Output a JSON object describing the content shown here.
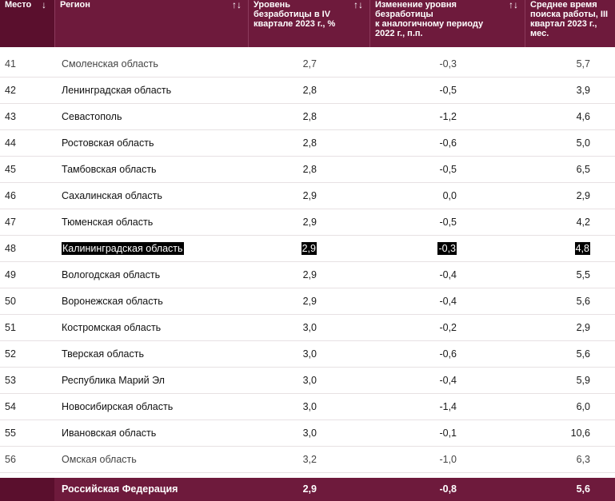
{
  "header": {
    "place": "Место",
    "region": "Регион",
    "rate_lines": [
      "Уровень",
      "безработицы в IV",
      "квартале 2023 г., %"
    ],
    "change_lines": [
      "Изменение уровня",
      "безработицы",
      "к аналогичному периоду",
      "2022 г., п.п."
    ],
    "search_lines": [
      "Среднее время",
      "поиска работы, III",
      "квартал 2023 г.,",
      "мес."
    ],
    "sort_desc_icon": "↓",
    "sort_both_icon": "↑↓"
  },
  "rows": [
    {
      "place": "41",
      "region": "Смоленская область",
      "rate": "2,7",
      "change": "-0,3",
      "search": "5,7"
    },
    {
      "place": "42",
      "region": "Ленинградская область",
      "rate": "2,8",
      "change": "-0,5",
      "search": "3,9"
    },
    {
      "place": "43",
      "region": "Севастополь",
      "rate": "2,8",
      "change": "-1,2",
      "search": "4,6"
    },
    {
      "place": "44",
      "region": "Ростовская область",
      "rate": "2,8",
      "change": "-0,6",
      "search": "5,0"
    },
    {
      "place": "45",
      "region": "Тамбовская область",
      "rate": "2,8",
      "change": "-0,5",
      "search": "6,5"
    },
    {
      "place": "46",
      "region": "Сахалинская область",
      "rate": "2,9",
      "change": "0,0",
      "search": "2,9"
    },
    {
      "place": "47",
      "region": "Тюменская область",
      "rate": "2,9",
      "change": "-0,5",
      "search": "4,2"
    },
    {
      "place": "48",
      "region": "Калининградская область",
      "rate": "2,9",
      "change": "-0,3",
      "search": "4,8"
    },
    {
      "place": "49",
      "region": "Вологодская область",
      "rate": "2,9",
      "change": "-0,4",
      "search": "5,5"
    },
    {
      "place": "50",
      "region": "Воронежская область",
      "rate": "2,9",
      "change": "-0,4",
      "search": "5,6"
    },
    {
      "place": "51",
      "region": "Костромская область",
      "rate": "3,0",
      "change": "-0,2",
      "search": "2,9"
    },
    {
      "place": "52",
      "region": "Тверская область",
      "rate": "3,0",
      "change": "-0,6",
      "search": "5,6"
    },
    {
      "place": "53",
      "region": "Республика Марий Эл",
      "rate": "3,0",
      "change": "-0,4",
      "search": "5,9"
    },
    {
      "place": "54",
      "region": "Новосибирская область",
      "rate": "3,0",
      "change": "-1,4",
      "search": "6,0"
    },
    {
      "place": "55",
      "region": "Ивановская область",
      "rate": "3,0",
      "change": "-0,1",
      "search": "10,6"
    },
    {
      "place": "56",
      "region": "Омская область",
      "rate": "3,2",
      "change": "-1,0",
      "search": "6,3"
    }
  ],
  "total": {
    "region": "Российская Федерация",
    "rate": "2,9",
    "change": "-0,8",
    "search": "5,6"
  },
  "colors": {
    "header_bg": "#6e1a3c",
    "header_place_bg": "#5a0f2d",
    "highlight_bg": "#000000"
  }
}
